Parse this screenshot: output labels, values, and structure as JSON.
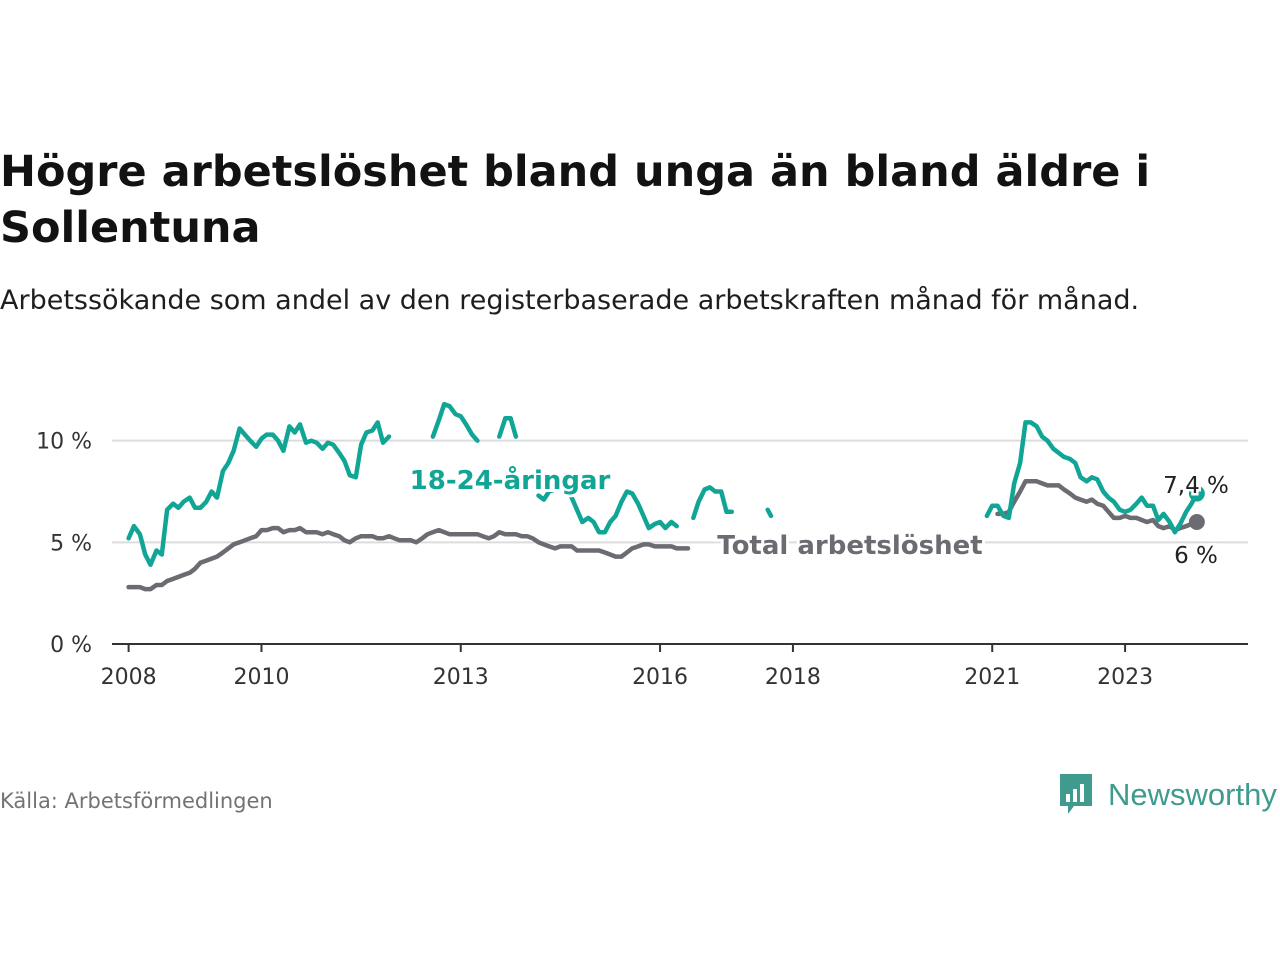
{
  "header": {
    "title": "Högre arbetslöshet bland unga än bland äldre i Sollentuna",
    "subtitle": "Arbetssökande som andel av den registerbaserade arbetskraften månad för månad."
  },
  "footer": {
    "source": "Källa: Arbetsförmedlingen",
    "brand": "Newsworthy",
    "brand_icon": "bar-chart-icon"
  },
  "colors": {
    "young": "#11a596",
    "total": "#6d6b72",
    "grid": "#dcdcdc",
    "axis": "#333333",
    "brand": "#3e9b8d"
  },
  "chart_data": {
    "type": "line",
    "title": "Högre arbetslöshet bland unga än bland äldre i Sollentuna",
    "xlabel": "",
    "ylabel": "",
    "xlim": [
      2007.75,
      2024.85
    ],
    "ylim": [
      0,
      12
    ],
    "yticks": [
      0,
      5,
      10
    ],
    "ytick_labels": [
      "0 %",
      "5 %",
      "10 %"
    ],
    "xticks": [
      2008,
      2010,
      2013,
      2016,
      2018,
      2021,
      2023
    ],
    "xtick_labels": [
      "2008",
      "2010",
      "2013",
      "2016",
      "2018",
      "2021",
      "2023"
    ],
    "grid": true,
    "series": [
      {
        "name": "18-24-åringar",
        "color": "#11a596",
        "end_label": "7,4 %",
        "points": [
          [
            2008.0,
            5.2
          ],
          [
            2008.08,
            5.8
          ],
          [
            2008.17,
            5.4
          ],
          [
            2008.25,
            4.4
          ],
          [
            2008.33,
            3.9
          ],
          [
            2008.42,
            4.6
          ],
          [
            2008.5,
            4.4
          ],
          [
            2008.58,
            6.6
          ],
          [
            2008.67,
            6.9
          ],
          [
            2008.75,
            6.7
          ],
          [
            2008.83,
            7.0
          ],
          [
            2008.92,
            7.2
          ],
          [
            2009.0,
            6.7
          ],
          [
            2009.08,
            6.7
          ],
          [
            2009.17,
            7.0
          ],
          [
            2009.25,
            7.5
          ],
          [
            2009.33,
            7.2
          ],
          [
            2009.42,
            8.5
          ],
          [
            2009.5,
            8.9
          ],
          [
            2009.58,
            9.5
          ],
          [
            2009.67,
            10.6
          ],
          [
            2009.75,
            10.3
          ],
          [
            2009.83,
            10.0
          ],
          [
            2009.92,
            9.7
          ],
          [
            2010.0,
            10.1
          ],
          [
            2010.08,
            10.3
          ],
          [
            2010.17,
            10.3
          ],
          [
            2010.25,
            10.0
          ],
          [
            2010.33,
            9.5
          ],
          [
            2010.42,
            10.7
          ],
          [
            2010.5,
            10.4
          ],
          [
            2010.58,
            10.8
          ],
          [
            2010.67,
            9.9
          ],
          [
            2010.75,
            10.0
          ],
          [
            2010.83,
            9.9
          ],
          [
            2010.92,
            9.6
          ],
          [
            2011.0,
            9.9
          ],
          [
            2011.08,
            9.8
          ],
          [
            2011.17,
            9.4
          ],
          [
            2011.25,
            9.0
          ],
          [
            2011.33,
            8.3
          ],
          [
            2011.42,
            8.2
          ],
          [
            2011.5,
            9.8
          ],
          [
            2011.58,
            10.4
          ],
          [
            2011.67,
            10.5
          ],
          [
            2011.75,
            10.9
          ],
          [
            2011.83,
            9.9
          ],
          [
            2011.92,
            10.2
          ],
          [
            2012.0,
            null
          ],
          [
            2012.5,
            null
          ],
          [
            2012.58,
            10.2
          ],
          [
            2012.67,
            11.0
          ],
          [
            2012.75,
            11.8
          ],
          [
            2012.83,
            11.7
          ],
          [
            2012.92,
            11.3
          ],
          [
            2013.0,
            11.2
          ],
          [
            2013.08,
            10.8
          ],
          [
            2013.17,
            10.3
          ],
          [
            2013.25,
            10.0
          ],
          [
            2013.33,
            null
          ],
          [
            2013.5,
            null
          ],
          [
            2013.58,
            10.2
          ],
          [
            2013.67,
            11.1
          ],
          [
            2013.75,
            11.1
          ],
          [
            2013.83,
            10.2
          ],
          [
            2013.92,
            null
          ],
          [
            2014.08,
            null
          ],
          [
            2014.17,
            7.3
          ],
          [
            2014.25,
            7.1
          ],
          [
            2014.33,
            7.5
          ],
          [
            2014.42,
            7.6
          ],
          [
            2014.5,
            7.8
          ],
          [
            2014.58,
            7.6
          ],
          [
            2014.67,
            7.2
          ],
          [
            2014.75,
            6.6
          ],
          [
            2014.83,
            6.0
          ],
          [
            2014.92,
            6.2
          ],
          [
            2015.0,
            6.0
          ],
          [
            2015.08,
            5.5
          ],
          [
            2015.17,
            5.5
          ],
          [
            2015.25,
            6.0
          ],
          [
            2015.33,
            6.3
          ],
          [
            2015.42,
            7.0
          ],
          [
            2015.5,
            7.5
          ],
          [
            2015.58,
            7.4
          ],
          [
            2015.67,
            6.9
          ],
          [
            2015.75,
            6.3
          ],
          [
            2015.83,
            5.7
          ],
          [
            2015.92,
            5.9
          ],
          [
            2016.0,
            6.0
          ],
          [
            2016.08,
            5.7
          ],
          [
            2016.17,
            6.0
          ],
          [
            2016.25,
            5.8
          ],
          [
            2016.33,
            null
          ],
          [
            2016.42,
            null
          ],
          [
            2016.5,
            6.2
          ],
          [
            2016.58,
            7.0
          ],
          [
            2016.67,
            7.6
          ],
          [
            2016.75,
            7.7
          ],
          [
            2016.83,
            7.5
          ],
          [
            2016.92,
            7.5
          ],
          [
            2017.0,
            6.5
          ],
          [
            2017.08,
            6.5
          ],
          [
            2017.17,
            null
          ],
          [
            2017.58,
            null
          ],
          [
            2017.62,
            6.6
          ],
          [
            2017.67,
            6.3
          ],
          [
            2017.7,
            null
          ],
          [
            2020.83,
            null
          ],
          [
            2020.92,
            6.3
          ],
          [
            2021.0,
            6.8
          ],
          [
            2021.08,
            6.8
          ],
          [
            2021.17,
            6.3
          ],
          [
            2021.25,
            6.2
          ],
          [
            2021.33,
            7.9
          ],
          [
            2021.42,
            8.9
          ],
          [
            2021.5,
            10.9
          ],
          [
            2021.58,
            10.9
          ],
          [
            2021.67,
            10.7
          ],
          [
            2021.75,
            10.2
          ],
          [
            2021.83,
            10.0
          ],
          [
            2021.92,
            9.6
          ],
          [
            2022.0,
            9.4
          ],
          [
            2022.08,
            9.2
          ],
          [
            2022.17,
            9.1
          ],
          [
            2022.25,
            8.9
          ],
          [
            2022.33,
            8.2
          ],
          [
            2022.42,
            8.0
          ],
          [
            2022.5,
            8.2
          ],
          [
            2022.58,
            8.1
          ],
          [
            2022.67,
            7.5
          ],
          [
            2022.75,
            7.2
          ],
          [
            2022.83,
            7.0
          ],
          [
            2022.92,
            6.6
          ],
          [
            2023.0,
            6.5
          ],
          [
            2023.08,
            6.6
          ],
          [
            2023.17,
            6.9
          ],
          [
            2023.25,
            7.2
          ],
          [
            2023.33,
            6.8
          ],
          [
            2023.42,
            6.8
          ],
          [
            2023.5,
            6.1
          ],
          [
            2023.58,
            6.4
          ],
          [
            2023.67,
            6.0
          ],
          [
            2023.75,
            5.5
          ],
          [
            2023.83,
            5.9
          ],
          [
            2023.92,
            6.5
          ],
          [
            2024.0,
            6.9
          ],
          [
            2024.08,
            7.4
          ]
        ]
      },
      {
        "name": "Total arbetslöshet",
        "color": "#6d6b72",
        "end_label": "6 %",
        "points": [
          [
            2008.0,
            2.8
          ],
          [
            2008.08,
            2.8
          ],
          [
            2008.17,
            2.8
          ],
          [
            2008.25,
            2.7
          ],
          [
            2008.33,
            2.7
          ],
          [
            2008.42,
            2.9
          ],
          [
            2008.5,
            2.9
          ],
          [
            2008.58,
            3.1
          ],
          [
            2008.67,
            3.2
          ],
          [
            2008.75,
            3.3
          ],
          [
            2008.83,
            3.4
          ],
          [
            2008.92,
            3.5
          ],
          [
            2009.0,
            3.7
          ],
          [
            2009.08,
            4.0
          ],
          [
            2009.17,
            4.1
          ],
          [
            2009.25,
            4.2
          ],
          [
            2009.33,
            4.3
          ],
          [
            2009.42,
            4.5
          ],
          [
            2009.5,
            4.7
          ],
          [
            2009.58,
            4.9
          ],
          [
            2009.67,
            5.0
          ],
          [
            2009.75,
            5.1
          ],
          [
            2009.83,
            5.2
          ],
          [
            2009.92,
            5.3
          ],
          [
            2010.0,
            5.6
          ],
          [
            2010.08,
            5.6
          ],
          [
            2010.17,
            5.7
          ],
          [
            2010.25,
            5.7
          ],
          [
            2010.33,
            5.5
          ],
          [
            2010.42,
            5.6
          ],
          [
            2010.5,
            5.6
          ],
          [
            2010.58,
            5.7
          ],
          [
            2010.67,
            5.5
          ],
          [
            2010.75,
            5.5
          ],
          [
            2010.83,
            5.5
          ],
          [
            2010.92,
            5.4
          ],
          [
            2011.0,
            5.5
          ],
          [
            2011.08,
            5.4
          ],
          [
            2011.17,
            5.3
          ],
          [
            2011.25,
            5.1
          ],
          [
            2011.33,
            5.0
          ],
          [
            2011.42,
            5.2
          ],
          [
            2011.5,
            5.3
          ],
          [
            2011.58,
            5.3
          ],
          [
            2011.67,
            5.3
          ],
          [
            2011.75,
            5.2
          ],
          [
            2011.83,
            5.2
          ],
          [
            2011.92,
            5.3
          ],
          [
            2012.0,
            5.2
          ],
          [
            2012.08,
            5.1
          ],
          [
            2012.17,
            5.1
          ],
          [
            2012.25,
            5.1
          ],
          [
            2012.33,
            5.0
          ],
          [
            2012.42,
            5.2
          ],
          [
            2012.5,
            5.4
          ],
          [
            2012.58,
            5.5
          ],
          [
            2012.67,
            5.6
          ],
          [
            2012.75,
            5.5
          ],
          [
            2012.83,
            5.4
          ],
          [
            2012.92,
            5.4
          ],
          [
            2013.0,
            5.4
          ],
          [
            2013.08,
            5.4
          ],
          [
            2013.17,
            5.4
          ],
          [
            2013.25,
            5.4
          ],
          [
            2013.33,
            5.3
          ],
          [
            2013.42,
            5.2
          ],
          [
            2013.5,
            5.3
          ],
          [
            2013.58,
            5.5
          ],
          [
            2013.67,
            5.4
          ],
          [
            2013.75,
            5.4
          ],
          [
            2013.83,
            5.4
          ],
          [
            2013.92,
            5.3
          ],
          [
            2014.0,
            5.3
          ],
          [
            2014.08,
            5.2
          ],
          [
            2014.17,
            5.0
          ],
          [
            2014.25,
            4.9
          ],
          [
            2014.33,
            4.8
          ],
          [
            2014.42,
            4.7
          ],
          [
            2014.5,
            4.8
          ],
          [
            2014.58,
            4.8
          ],
          [
            2014.67,
            4.8
          ],
          [
            2014.75,
            4.6
          ],
          [
            2014.83,
            4.6
          ],
          [
            2014.92,
            4.6
          ],
          [
            2015.0,
            4.6
          ],
          [
            2015.08,
            4.6
          ],
          [
            2015.17,
            4.5
          ],
          [
            2015.25,
            4.4
          ],
          [
            2015.33,
            4.3
          ],
          [
            2015.42,
            4.3
          ],
          [
            2015.5,
            4.5
          ],
          [
            2015.58,
            4.7
          ],
          [
            2015.67,
            4.8
          ],
          [
            2015.75,
            4.9
          ],
          [
            2015.83,
            4.9
          ],
          [
            2015.92,
            4.8
          ],
          [
            2016.0,
            4.8
          ],
          [
            2016.08,
            4.8
          ],
          [
            2016.17,
            4.8
          ],
          [
            2016.25,
            4.7
          ],
          [
            2016.33,
            4.7
          ],
          [
            2016.42,
            4.7
          ],
          [
            2016.5,
            null
          ],
          [
            2021.0,
            null
          ],
          [
            2021.08,
            6.4
          ],
          [
            2021.17,
            6.4
          ],
          [
            2021.25,
            6.5
          ],
          [
            2021.33,
            7.0
          ],
          [
            2021.42,
            7.5
          ],
          [
            2021.5,
            8.0
          ],
          [
            2021.58,
            8.0
          ],
          [
            2021.67,
            8.0
          ],
          [
            2021.75,
            7.9
          ],
          [
            2021.83,
            7.8
          ],
          [
            2021.92,
            7.8
          ],
          [
            2022.0,
            7.8
          ],
          [
            2022.08,
            7.6
          ],
          [
            2022.17,
            7.4
          ],
          [
            2022.25,
            7.2
          ],
          [
            2022.33,
            7.1
          ],
          [
            2022.42,
            7.0
          ],
          [
            2022.5,
            7.1
          ],
          [
            2022.58,
            6.9
          ],
          [
            2022.67,
            6.8
          ],
          [
            2022.75,
            6.5
          ],
          [
            2022.83,
            6.2
          ],
          [
            2022.92,
            6.2
          ],
          [
            2023.0,
            6.3
          ],
          [
            2023.08,
            6.2
          ],
          [
            2023.17,
            6.2
          ],
          [
            2023.25,
            6.1
          ],
          [
            2023.33,
            6.0
          ],
          [
            2023.42,
            6.1
          ],
          [
            2023.5,
            5.8
          ],
          [
            2023.58,
            5.7
          ],
          [
            2023.67,
            5.8
          ],
          [
            2023.75,
            5.6
          ],
          [
            2023.83,
            5.7
          ],
          [
            2023.92,
            5.8
          ],
          [
            2024.0,
            5.9
          ],
          [
            2024.08,
            6.0
          ]
        ]
      }
    ]
  }
}
